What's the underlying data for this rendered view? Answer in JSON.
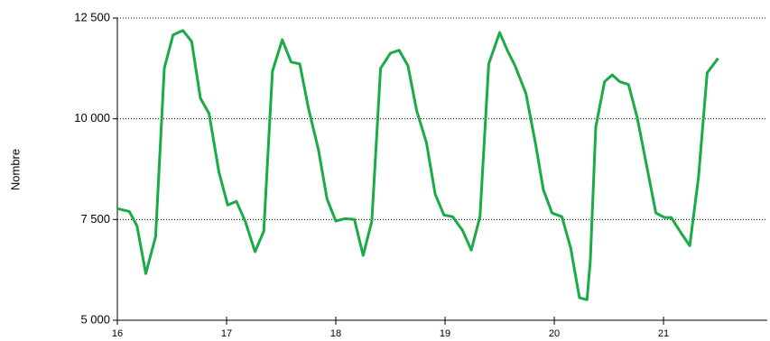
{
  "chart_data": {
    "type": "line",
    "y_label": "Nombre",
    "color": "#1aab47",
    "x": [
      16,
      16.11,
      16.18,
      16.26,
      16.35,
      16.43,
      16.51,
      16.6,
      16.68,
      16.76,
      16.84,
      16.93,
      17.01,
      17.09,
      17.17,
      17.26,
      17.34,
      17.42,
      17.51,
      17.59,
      17.67,
      17.75,
      17.84,
      17.92,
      18,
      18.08,
      18.17,
      18.25,
      18.33,
      18.41,
      18.5,
      18.58,
      18.66,
      18.74,
      18.83,
      18.91,
      18.99,
      19.07,
      19.16,
      19.24,
      19.32,
      19.4,
      19.5,
      19.57,
      19.64,
      19.74,
      19.83,
      19.9,
      19.98,
      20.07,
      20.15,
      20.23,
      20.3,
      20.33,
      20.38,
      20.46,
      20.53,
      20.6,
      20.68,
      20.76,
      20.84,
      20.93,
      21.01,
      21.07,
      21.16,
      21.24,
      21.32,
      21.4,
      21.5
    ],
    "values": [
      7770,
      7700,
      7340,
      6160,
      7080,
      11250,
      12080,
      12190,
      11920,
      10510,
      10130,
      8680,
      7860,
      7950,
      7460,
      6700,
      7210,
      11180,
      11960,
      11410,
      11360,
      10250,
      9240,
      8010,
      7460,
      7520,
      7500,
      6610,
      7460,
      11250,
      11630,
      11700,
      11320,
      10200,
      9400,
      8130,
      7610,
      7570,
      7230,
      6740,
      7570,
      11360,
      12140,
      11700,
      11320,
      10630,
      9350,
      8240,
      7660,
      7570,
      6790,
      5560,
      5510,
      6500,
      9800,
      10920,
      11090,
      10920,
      10850,
      10020,
      8910,
      7660,
      7550,
      7550,
      7170,
      6850,
      8550,
      11140,
      11500
    ],
    "xlim": [
      16,
      21.95
    ],
    "xticks": [
      16,
      17,
      18,
      19,
      20,
      21
    ],
    "ylim": [
      5000,
      12500
    ],
    "yticks": [
      {
        "value": 5000,
        "label": "5 000"
      },
      {
        "value": 7500,
        "label": "7 500"
      },
      {
        "value": 10000,
        "label": "10 000"
      },
      {
        "value": 12500,
        "label": "12 500"
      }
    ],
    "grid": true
  }
}
